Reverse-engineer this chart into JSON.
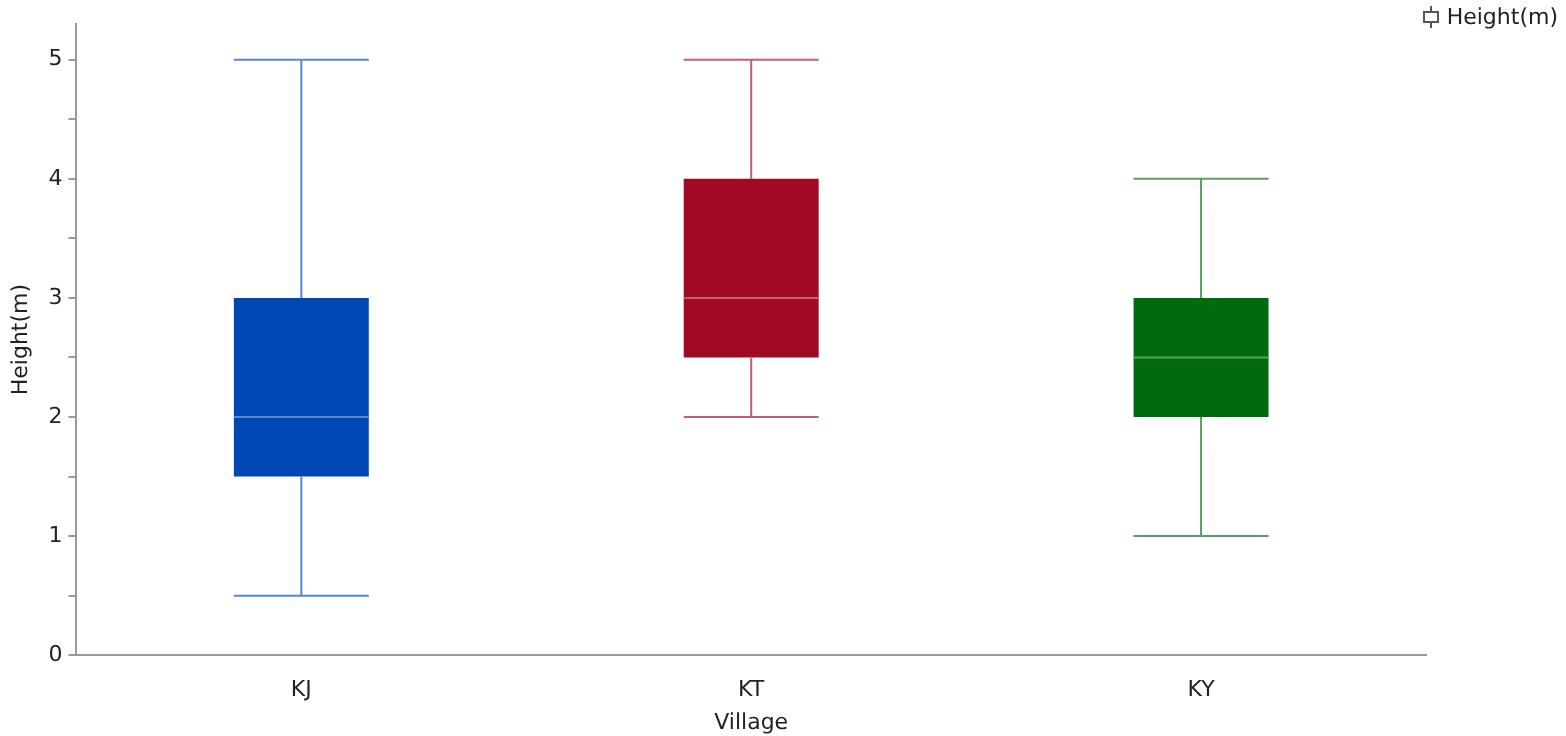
{
  "chart_data": {
    "type": "box",
    "xlabel": "Village",
    "ylabel": "Height(m)",
    "categories": [
      "KJ",
      "KT",
      "KY"
    ],
    "series": [
      {
        "name": "Height(m)",
        "colors": [
          "#0047b5",
          "#a10a24",
          "#006b0c"
        ],
        "boxes": [
          {
            "low": 0.5,
            "q1": 1.5,
            "median": 2,
            "q3": 3,
            "high": 5
          },
          {
            "low": 2,
            "q1": 2.5,
            "median": 3,
            "q3": 4,
            "high": 5
          },
          {
            "low": 1,
            "q1": 2,
            "median": 2.5,
            "q3": 3,
            "high": 4
          }
        ]
      }
    ],
    "ylim": [
      0,
      5.3
    ],
    "yticks": [
      0,
      {
        "value": 0.5,
        "label": null
      },
      1,
      {
        "value": 1.5,
        "label": null
      },
      2,
      {
        "value": 2.5,
        "label": null
      },
      3,
      {
        "value": 3.5,
        "label": null
      },
      4,
      {
        "value": 4.5,
        "label": null
      },
      5
    ],
    "grid": false,
    "legend": "top right"
  }
}
